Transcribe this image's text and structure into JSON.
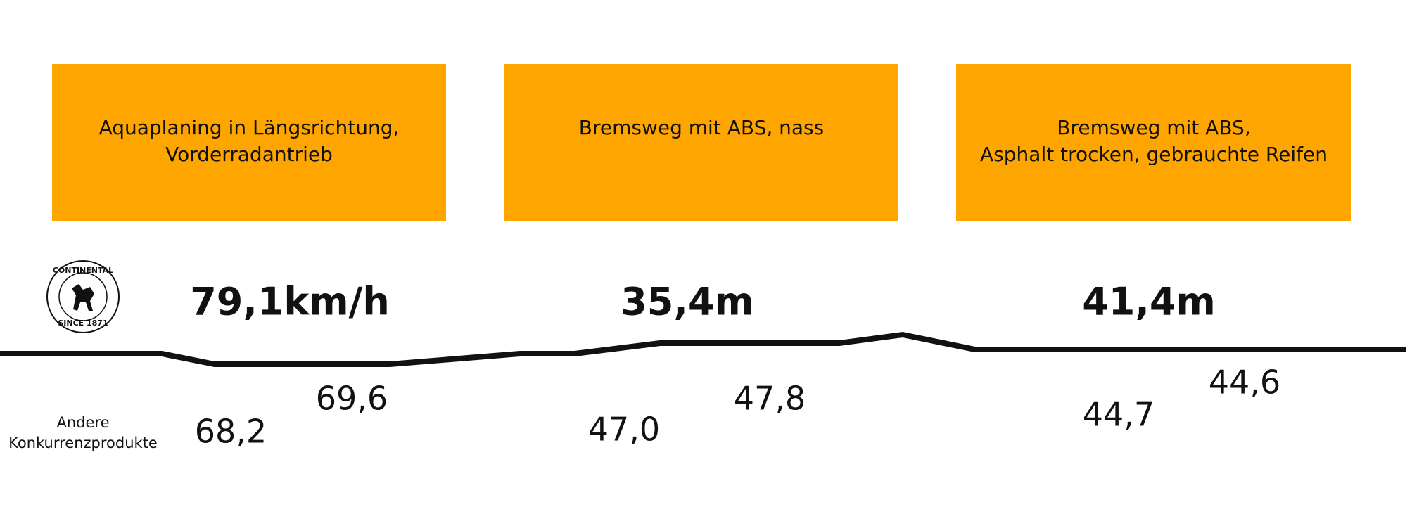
{
  "logo": {
    "top": "CONTINENTAL",
    "bottom": "SINCE 1871"
  },
  "other_label": [
    "Andere",
    "Konkurrenzprodukte"
  ],
  "panels": [
    {
      "title": [
        "Aquaplaning in Längsrichtung,",
        "Vorderradantrieb"
      ],
      "continental": "79,1km/h",
      "competitors": [
        "68,2",
        "69,6"
      ]
    },
    {
      "title": [
        "Bremsweg mit ABS, nass"
      ],
      "continental": "35,4m",
      "competitors": [
        "47,0",
        "47,8"
      ]
    },
    {
      "title": [
        "Bremsweg mit ABS,",
        "Asphalt trocken, gebrauchte Reifen"
      ],
      "continental": "41,4m",
      "competitors": [
        "44,7",
        "44,6"
      ]
    }
  ]
}
